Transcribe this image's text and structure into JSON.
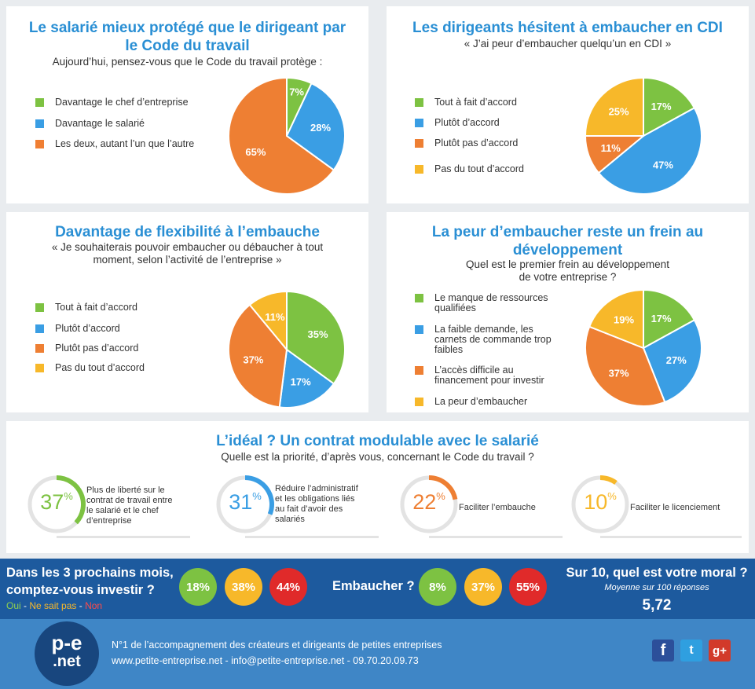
{
  "colors": {
    "green": "#7dc242",
    "blue": "#3a9ee4",
    "orange": "#ee7f33",
    "yellow": "#f7b82a",
    "red": "#e02a2a",
    "navy": "#1d5a9e",
    "title": "#2a8fd4"
  },
  "chart_data": [
    {
      "type": "pie",
      "title": "Le salarié mieux protégé que le dirigeant par le Code du travail",
      "subtitle": "Aujourd’hui, pensez-vous que le Code du travail protège :",
      "categories": [
        "Davantage le chef d’entreprise",
        "Davantage le salarié",
        "Les deux, autant l’un que l’autre"
      ],
      "values": [
        7,
        28,
        65
      ],
      "labels": [
        "7%",
        "28%",
        "65%"
      ],
      "colors": [
        "#7dc242",
        "#3a9ee4",
        "#ee7f33"
      ]
    },
    {
      "type": "pie",
      "title": "Les dirigeants hésitent à embaucher en CDI",
      "subtitle": "« J’ai peur d’embaucher quelqu’un en CDI »",
      "categories": [
        "Tout à fait d’accord",
        "Plutôt d’accord",
        "Plutôt pas d’accord",
        "Pas du tout d’accord"
      ],
      "values": [
        17,
        47,
        11,
        25
      ],
      "labels": [
        "17%",
        "47%",
        "11%",
        "25%"
      ],
      "colors": [
        "#7dc242",
        "#3a9ee4",
        "#ee7f33",
        "#f7b82a"
      ]
    },
    {
      "type": "pie",
      "title": "Davantage de flexibilité à l’embauche",
      "subtitle": "« Je souhaiterais pouvoir embaucher ou débaucher à tout moment, selon l’activité de l’entreprise »",
      "categories": [
        "Tout à fait d’accord",
        "Plutôt d’accord",
        "Plutôt pas d’accord",
        "Pas du tout d’accord"
      ],
      "values": [
        35,
        17,
        37,
        11
      ],
      "labels": [
        "35%",
        "17%",
        "37%",
        "11%"
      ],
      "colors": [
        "#7dc242",
        "#3a9ee4",
        "#ee7f33",
        "#f7b82a"
      ]
    },
    {
      "type": "pie",
      "title": "La peur d’embaucher reste un frein au développement",
      "subtitle": "Quel est le premier frein au développement de votre entreprise ?",
      "categories": [
        "Le manque de ressources qualifiées",
        "La faible demande, les carnets de commande trop faibles",
        "L’accès difficile au financement pour investir",
        "La peur d’embaucher"
      ],
      "values": [
        17,
        27,
        37,
        19
      ],
      "labels": [
        "17%",
        "27%",
        "37%",
        "19%"
      ],
      "colors": [
        "#7dc242",
        "#3a9ee4",
        "#ee7f33",
        "#f7b82a"
      ]
    },
    {
      "type": "bar",
      "title": "L’idéal ? Un contrat modulable avec le salarié",
      "subtitle": "Quelle est la priorité, d’après vous, concernant le Code du travail ?",
      "categories": [
        "Plus de liberté sur le contrat de travail entre le salarié et le chef d’entreprise",
        "Réduire l’administratif et les obligations liés au fait d’avoir des salariés",
        "Faciliter l’embauche",
        "Faciliter le licenciement"
      ],
      "values": [
        37,
        31,
        22,
        10
      ],
      "colors": [
        "#7dc242",
        "#3a9ee4",
        "#ee7f33",
        "#f7b82a"
      ]
    }
  ],
  "panels": [
    {
      "title_lines": [
        "Le salarié mieux protégé que le dirigeant par",
        "le Code du travail"
      ],
      "subtitle_lines": [
        "Aujourd’hui, pensez-vous que le Code du travail protège :"
      ],
      "legend": [
        [
          "Davantage le chef d’entreprise"
        ],
        [
          "Davantage le salarié"
        ],
        [
          "Les deux, autant l’un que l’autre"
        ]
      ]
    },
    {
      "title_lines": [
        "Les dirigeants hésitent à embaucher en CDI"
      ],
      "subtitle_lines": [
        "« J’ai peur d’embaucher quelqu’un en CDI »"
      ],
      "legend": [
        [
          "Tout à fait d’accord"
        ],
        [
          "Plutôt d’accord"
        ],
        [
          "Plutôt pas d’accord"
        ],
        [
          "Pas du tout d’accord"
        ]
      ]
    },
    {
      "title_lines": [
        "Davantage de flexibilité à l’embauche"
      ],
      "subtitle_lines": [
        "« Je souhaiterais pouvoir embaucher ou débaucher à tout",
        "moment, selon l’activité de l’entreprise »"
      ],
      "legend": [
        [
          "Tout à fait d’accord"
        ],
        [
          "Plutôt d’accord"
        ],
        [
          "Plutôt pas d’accord"
        ],
        [
          "Pas du tout d’accord"
        ]
      ]
    },
    {
      "title_lines": [
        "La peur d’embaucher reste un frein au",
        "développement"
      ],
      "subtitle_lines": [
        "Quel est le premier frein au développement",
        "de votre entreprise ?"
      ],
      "legend": [
        [
          "Le manque de ressources",
          "qualifiées"
        ],
        [
          "La faible demande, les",
          "carnets de commande trop",
          "faibles"
        ],
        [
          "L’accès difficile au",
          "financement pour investir"
        ],
        [
          "La peur d’embaucher"
        ]
      ]
    }
  ],
  "priorities": {
    "title": "L’idéal ? Un contrat modulable avec le salarié",
    "subtitle": "Quelle est la priorité, d’après vous, concernant le Code du travail ?",
    "items": [
      {
        "value": "37",
        "unit": "%",
        "label_lines": [
          "Plus de liberté sur le",
          "contrat de travail entre",
          "le salarié et le chef",
          "d’entreprise"
        ]
      },
      {
        "value": "31",
        "unit": "%",
        "label_lines": [
          "Réduire l’administratif",
          "et les obligations liés",
          "au fait d’avoir des",
          "salariés"
        ]
      },
      {
        "value": "22",
        "unit": "%",
        "label_lines": [
          "Faciliter l’embauche"
        ]
      },
      {
        "value": "10",
        "unit": "%",
        "label_lines": [
          "Faciliter le licenciement"
        ]
      }
    ]
  },
  "band": {
    "invest_question_l1": "Dans les 3 prochains mois,",
    "invest_question_l2": "comptez-vous investir ?",
    "legend_oui": "Oui",
    "legend_sep": " - ",
    "legend_nsp": "Ne sait pas",
    "legend_non": "Non",
    "invest": [
      "18%",
      "38%",
      "44%"
    ],
    "hire_question": "Embaucher ?",
    "hire": [
      "8%",
      "37%",
      "55%"
    ],
    "moral_question": "Sur 10, quel est votre moral ?",
    "moral_note": "Moyenne sur 100 réponses",
    "moral_value": "5,72"
  },
  "footer": {
    "logo_top": "p-e",
    "logo_bottom": ".net",
    "line1": "N°1 de l’accompagnement des créateurs et dirigeants de petites entreprises",
    "line2": "www.petite-entreprise.net - info@petite-entreprise.net - 09.70.20.09.73",
    "social": [
      {
        "icon": "facebook-icon",
        "glyph": "f"
      },
      {
        "icon": "twitter-icon",
        "glyph": "t"
      },
      {
        "icon": "google-plus-icon",
        "glyph": "g+"
      }
    ]
  }
}
